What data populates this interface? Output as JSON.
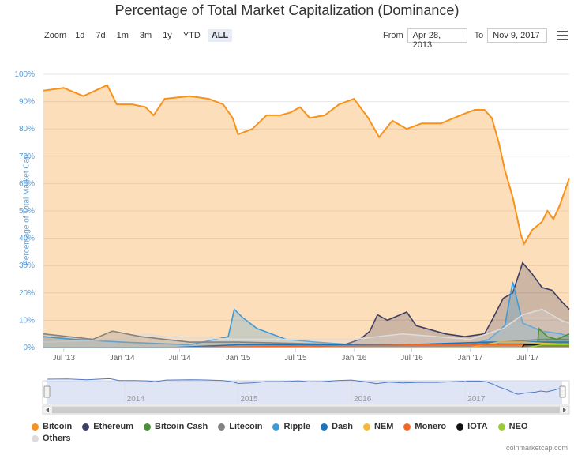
{
  "title": "Percentage of Total Market Capitalization (Dominance)",
  "toolbar": {
    "zoom_label": "Zoom",
    "buttons": [
      "1d",
      "7d",
      "1m",
      "3m",
      "1y",
      "YTD",
      "ALL"
    ],
    "active": "ALL",
    "from_label": "From",
    "from_value": "Apr 28, 2013",
    "to_label": "To",
    "to_value": "Nov 9, 2017"
  },
  "credit": "coinmarketcap.com",
  "chart_data": {
    "type": "area",
    "title": "Percentage of Total Market Capitalization (Dominance)",
    "ylabel": "Percentage of Total Market Cap",
    "ylim": [
      0,
      100
    ],
    "y_ticks": [
      "0%",
      "10%",
      "20%",
      "30%",
      "40%",
      "50%",
      "60%",
      "70%",
      "80%",
      "90%",
      "100%"
    ],
    "x_ticks": [
      "Jul '13",
      "Jan '14",
      "Jul '14",
      "Jan '15",
      "Jul '15",
      "Jan '16",
      "Jul '16",
      "Jan '17",
      "Jul '17"
    ],
    "navigator_ticks": [
      "2014",
      "2015",
      "2016",
      "2017"
    ],
    "grid": true,
    "legend_position": "bottom",
    "series": [
      {
        "name": "Bitcoin",
        "color": "#f7931a",
        "points": [
          [
            "2013-04-28",
            94
          ],
          [
            "2013-07-01",
            95
          ],
          [
            "2013-09-01",
            92
          ],
          [
            "2013-11-15",
            96
          ],
          [
            "2013-12-15",
            89
          ],
          [
            "2014-02-01",
            89
          ],
          [
            "2014-03-15",
            88
          ],
          [
            "2014-04-10",
            85
          ],
          [
            "2014-05-15",
            91
          ],
          [
            "2014-08-01",
            92
          ],
          [
            "2014-10-01",
            91
          ],
          [
            "2014-11-15",
            89
          ],
          [
            "2014-12-15",
            84
          ],
          [
            "2015-01-01",
            78
          ],
          [
            "2015-02-15",
            80
          ],
          [
            "2015-04-01",
            85
          ],
          [
            "2015-05-15",
            85
          ],
          [
            "2015-06-15",
            86
          ],
          [
            "2015-07-15",
            88
          ],
          [
            "2015-08-15",
            84
          ],
          [
            "2015-10-01",
            85
          ],
          [
            "2015-11-15",
            89
          ],
          [
            "2016-01-01",
            91
          ],
          [
            "2016-02-15",
            84
          ],
          [
            "2016-03-20",
            77
          ],
          [
            "2016-05-01",
            83
          ],
          [
            "2016-06-15",
            80
          ],
          [
            "2016-08-01",
            82
          ],
          [
            "2016-10-01",
            82
          ],
          [
            "2016-12-01",
            85
          ],
          [
            "2017-01-15",
            87
          ],
          [
            "2017-02-15",
            87
          ],
          [
            "2017-03-10",
            84
          ],
          [
            "2017-04-01",
            75
          ],
          [
            "2017-04-20",
            65
          ],
          [
            "2017-05-15",
            55
          ],
          [
            "2017-06-10",
            41
          ],
          [
            "2017-06-20",
            38
          ],
          [
            "2017-07-15",
            43
          ],
          [
            "2017-08-15",
            46
          ],
          [
            "2017-09-01",
            50
          ],
          [
            "2017-09-20",
            47
          ],
          [
            "2017-10-10",
            52
          ],
          [
            "2017-10-25",
            57
          ],
          [
            "2017-11-09",
            62
          ]
        ]
      },
      {
        "name": "Ethereum",
        "color": "#3f3f63",
        "points": [
          [
            "2013-04-28",
            0
          ],
          [
            "2015-08-07",
            0
          ],
          [
            "2015-12-01",
            1
          ],
          [
            "2016-01-20",
            3
          ],
          [
            "2016-02-20",
            6
          ],
          [
            "2016-03-15",
            12
          ],
          [
            "2016-04-15",
            10
          ],
          [
            "2016-06-15",
            13
          ],
          [
            "2016-07-15",
            8
          ],
          [
            "2016-08-15",
            7
          ],
          [
            "2016-10-15",
            5
          ],
          [
            "2016-12-15",
            4
          ],
          [
            "2017-02-15",
            5
          ],
          [
            "2017-03-15",
            11
          ],
          [
            "2017-04-15",
            18
          ],
          [
            "2017-05-15",
            20
          ],
          [
            "2017-06-15",
            31
          ],
          [
            "2017-07-15",
            27
          ],
          [
            "2017-08-15",
            22
          ],
          [
            "2017-09-15",
            21
          ],
          [
            "2017-10-15",
            17
          ],
          [
            "2017-11-09",
            14
          ]
        ]
      },
      {
        "name": "Ripple",
        "color": "#3d9ad8",
        "points": [
          [
            "2013-04-28",
            4
          ],
          [
            "2013-08-01",
            3
          ],
          [
            "2014-01-01",
            2
          ],
          [
            "2014-08-01",
            1
          ],
          [
            "2014-12-01",
            4
          ],
          [
            "2014-12-20",
            14
          ],
          [
            "2015-01-15",
            11
          ],
          [
            "2015-03-01",
            7
          ],
          [
            "2015-06-01",
            3
          ],
          [
            "2015-09-01",
            2
          ],
          [
            "2016-01-01",
            1
          ],
          [
            "2016-08-01",
            1
          ],
          [
            "2017-01-01",
            1
          ],
          [
            "2017-03-01",
            3
          ],
          [
            "2017-04-20",
            8
          ],
          [
            "2017-05-15",
            24
          ],
          [
            "2017-06-15",
            9
          ],
          [
            "2017-08-15",
            6
          ],
          [
            "2017-10-15",
            5
          ],
          [
            "2017-11-09",
            4
          ]
        ]
      },
      {
        "name": "Others",
        "color": "#dcdcdc",
        "points": [
          [
            "2013-04-28",
            2
          ],
          [
            "2014-01-01",
            3
          ],
          [
            "2014-03-15",
            5
          ],
          [
            "2014-05-15",
            4
          ],
          [
            "2015-01-01",
            3
          ],
          [
            "2015-06-01",
            3
          ],
          [
            "2016-01-01",
            3
          ],
          [
            "2016-06-01",
            5
          ],
          [
            "2017-01-01",
            3
          ],
          [
            "2017-04-15",
            7
          ],
          [
            "2017-06-15",
            12
          ],
          [
            "2017-08-15",
            14
          ],
          [
            "2017-10-15",
            10
          ],
          [
            "2017-11-09",
            9
          ]
        ]
      },
      {
        "name": "Litecoin",
        "color": "#838383",
        "points": [
          [
            "2013-04-28",
            5
          ],
          [
            "2013-10-01",
            3
          ],
          [
            "2013-12-01",
            6
          ],
          [
            "2014-03-01",
            4
          ],
          [
            "2014-08-01",
            2
          ],
          [
            "2015-01-01",
            2
          ],
          [
            "2016-01-01",
            1
          ],
          [
            "2017-01-01",
            1
          ],
          [
            "2017-04-15",
            2
          ],
          [
            "2017-08-15",
            3
          ],
          [
            "2017-11-09",
            3
          ]
        ]
      },
      {
        "name": "Dash",
        "color": "#1c75bc",
        "points": [
          [
            "2013-04-28",
            0
          ],
          [
            "2014-06-01",
            0
          ],
          [
            "2015-01-01",
            1
          ],
          [
            "2016-06-01",
            1
          ],
          [
            "2017-03-01",
            2
          ],
          [
            "2017-06-15",
            2
          ],
          [
            "2017-11-09",
            2
          ]
        ]
      },
      {
        "name": "Bitcoin Cash",
        "color": "#4a8f3a",
        "points": [
          [
            "2017-08-01",
            0
          ],
          [
            "2017-08-05",
            7
          ],
          [
            "2017-09-01",
            4
          ],
          [
            "2017-10-01",
            3
          ],
          [
            "2017-11-09",
            5
          ]
        ]
      },
      {
        "name": "NEM",
        "color": "#f5b83d",
        "points": [
          [
            "2015-04-01",
            0
          ],
          [
            "2017-01-01",
            0
          ],
          [
            "2017-04-01",
            2
          ],
          [
            "2017-06-15",
            2
          ],
          [
            "2017-11-09",
            1
          ]
        ]
      },
      {
        "name": "Monero",
        "color": "#f26822",
        "points": [
          [
            "2014-06-01",
            0
          ],
          [
            "2016-09-01",
            1
          ],
          [
            "2017-06-01",
            1
          ],
          [
            "2017-11-09",
            1
          ]
        ]
      },
      {
        "name": "IOTA",
        "color": "#111111",
        "points": [
          [
            "2017-06-13",
            0
          ],
          [
            "2017-06-20",
            1
          ],
          [
            "2017-11-09",
            1
          ]
        ]
      },
      {
        "name": "NEO",
        "color": "#9acd32",
        "points": [
          [
            "2016-10-01",
            0
          ],
          [
            "2017-07-01",
            0
          ],
          [
            "2017-08-15",
            1
          ],
          [
            "2017-11-09",
            1
          ]
        ]
      }
    ],
    "legend_order": [
      "Bitcoin",
      "Ethereum",
      "Bitcoin Cash",
      "Litecoin",
      "Ripple",
      "Dash",
      "NEM",
      "Monero",
      "IOTA",
      "NEO",
      "Others"
    ]
  }
}
